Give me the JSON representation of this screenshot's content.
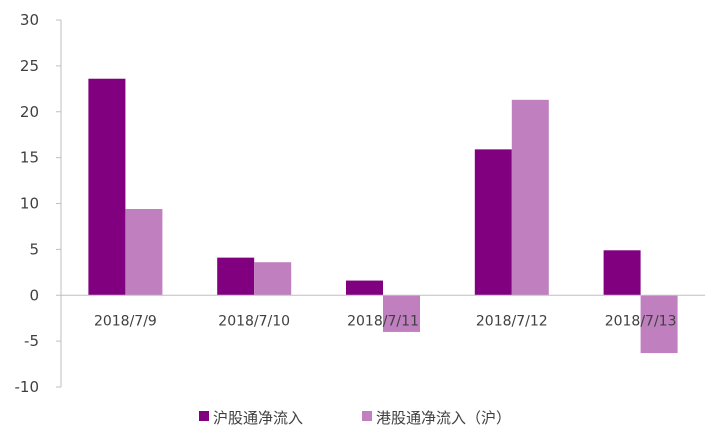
{
  "chart_data": {
    "type": "bar",
    "title": "",
    "xlabel": "",
    "ylabel": "",
    "categories": [
      "2018/7/9",
      "2018/7/10",
      "2018/7/11",
      "2018/7/12",
      "2018/7/13"
    ],
    "series": [
      {
        "name": "沪股通净流入",
        "values": [
          23.6,
          4.1,
          1.6,
          15.9,
          4.9
        ],
        "color": "#800080"
      },
      {
        "name": "港股通净流入（沪）",
        "values": [
          9.4,
          3.6,
          -4.0,
          21.3,
          -6.3
        ],
        "color": "#c080c0"
      }
    ],
    "ylim": [
      -10,
      30
    ],
    "yticks": [
      -10,
      -5,
      0,
      5,
      10,
      15,
      20,
      25,
      30
    ],
    "grid": false,
    "legend_position": "bottom"
  }
}
